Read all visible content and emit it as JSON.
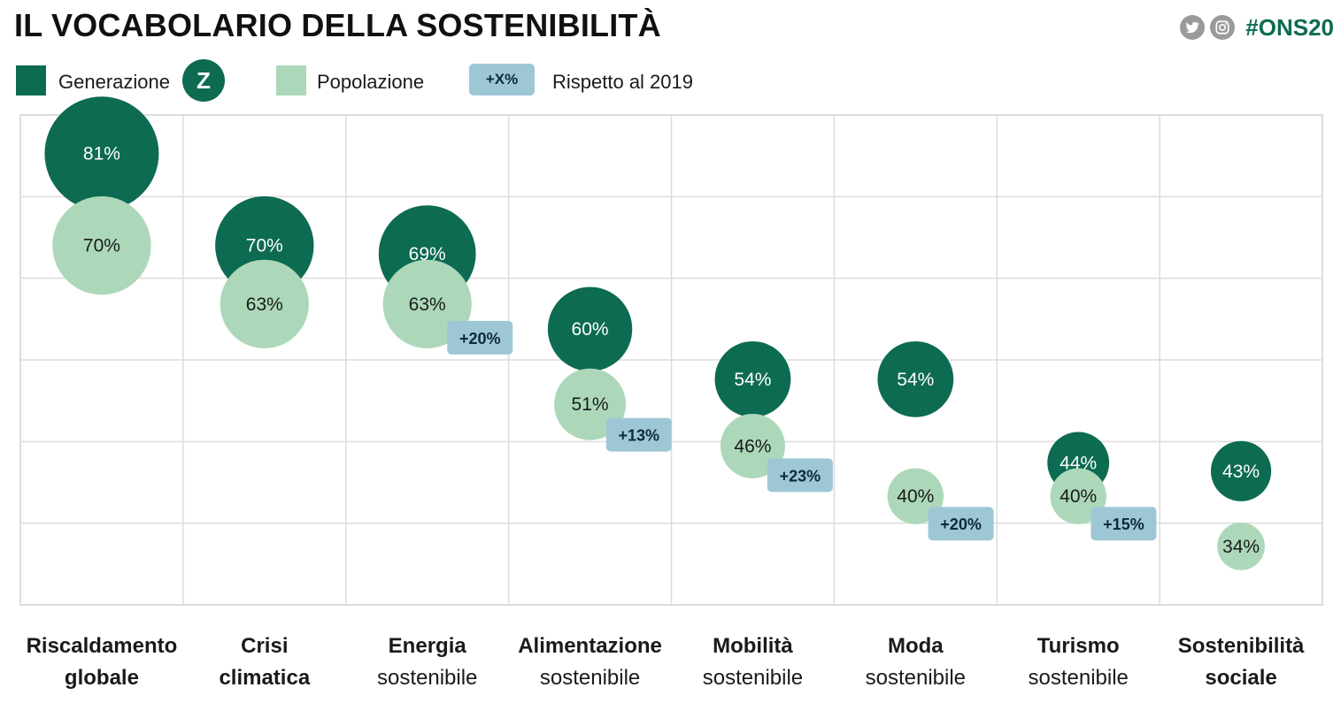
{
  "title": "IL VOCABOLARIO DELLA SOSTENIBILITÀ",
  "hashtag": "#ONS20",
  "social_icons": [
    "twitter-icon",
    "instagram-icon"
  ],
  "legend": {
    "genz_label": "Generazione",
    "genz_badge": "Z",
    "pop_label": "Popolazione",
    "delta_badge": "+X%",
    "delta_label": "Rispetto al 2019"
  },
  "colors": {
    "genz": "#0d6b52",
    "pop": "#acd8b9",
    "delta": "#9ec7d6",
    "grid": "#dcdcdc"
  },
  "chart_data": {
    "type": "scatter",
    "title": "IL VOCABOLARIO DELLA SOSTENIBILITÀ",
    "encoding": "bubble",
    "grid": true,
    "legend_position": "top-left",
    "categories": [
      [
        "Riscaldamento",
        "globale"
      ],
      [
        "Crisi",
        "climatica"
      ],
      [
        "Energia",
        "sostenibile"
      ],
      [
        "Alimentazione",
        "sostenibile"
      ],
      [
        "Mobilità",
        "sostenibile"
      ],
      [
        "Moda",
        "sostenibile"
      ],
      [
        "Turismo",
        "sostenibile"
      ],
      [
        "Sostenibilità",
        "sociale"
      ]
    ],
    "category_line2_bold": [
      true,
      true,
      false,
      false,
      false,
      false,
      false,
      true
    ],
    "series": [
      {
        "name": "Generazione Z",
        "values": [
          81,
          70,
          69,
          60,
          54,
          54,
          44,
          43
        ],
        "labels": [
          "81%",
          "70%",
          "69%",
          "60%",
          "54%",
          "54%",
          "44%",
          "43%"
        ]
      },
      {
        "name": "Popolazione",
        "values": [
          70,
          63,
          63,
          51,
          46,
          40,
          40,
          34
        ],
        "labels": [
          "70%",
          "63%",
          "63%",
          "51%",
          "46%",
          "40%",
          "40%",
          "34%"
        ]
      }
    ],
    "delta_labels": [
      null,
      null,
      "+20%",
      "+13%",
      "+23%",
      "+20%",
      "+15%",
      null
    ]
  }
}
